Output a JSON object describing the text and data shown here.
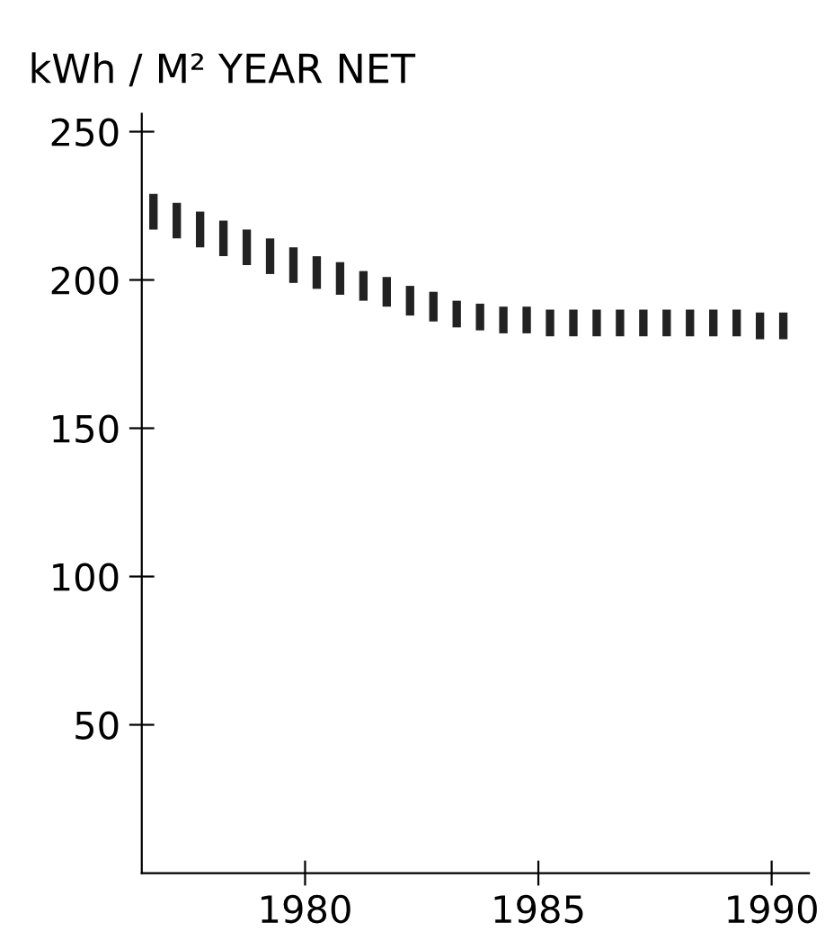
{
  "chart_data": {
    "type": "bar",
    "ylabel": "kWh / M² YEAR NET",
    "x": [
      1976.75,
      1977.25,
      1977.75,
      1978.25,
      1978.75,
      1979.25,
      1979.75,
      1980.25,
      1980.75,
      1981.25,
      1981.75,
      1982.25,
      1982.75,
      1983.25,
      1983.75,
      1984.25,
      1984.75,
      1985.25,
      1985.75,
      1986.25,
      1986.75,
      1987.25,
      1987.75,
      1988.25,
      1988.75,
      1989.25,
      1989.75,
      1990.25
    ],
    "base": [
      217,
      214,
      211,
      208,
      205,
      202,
      199,
      197,
      195,
      193,
      191,
      188,
      186,
      184,
      183,
      182,
      182,
      181,
      181,
      181,
      181,
      181,
      181,
      181,
      181,
      181,
      180,
      180
    ],
    "values": [
      12,
      12,
      12,
      12,
      12,
      12,
      12,
      11,
      11,
      10,
      10,
      10,
      10,
      9,
      9,
      9,
      9,
      9,
      9,
      9,
      9,
      9,
      9,
      9,
      9,
      9,
      9,
      9
    ],
    "color": "#222222",
    "xlim": [
      1976.5,
      1990.8
    ],
    "xticks": [
      1980,
      1985,
      1990
    ],
    "ylim": [
      0,
      256
    ],
    "yticks": [
      50,
      100,
      150,
      200,
      250
    ],
    "grid": false
  }
}
